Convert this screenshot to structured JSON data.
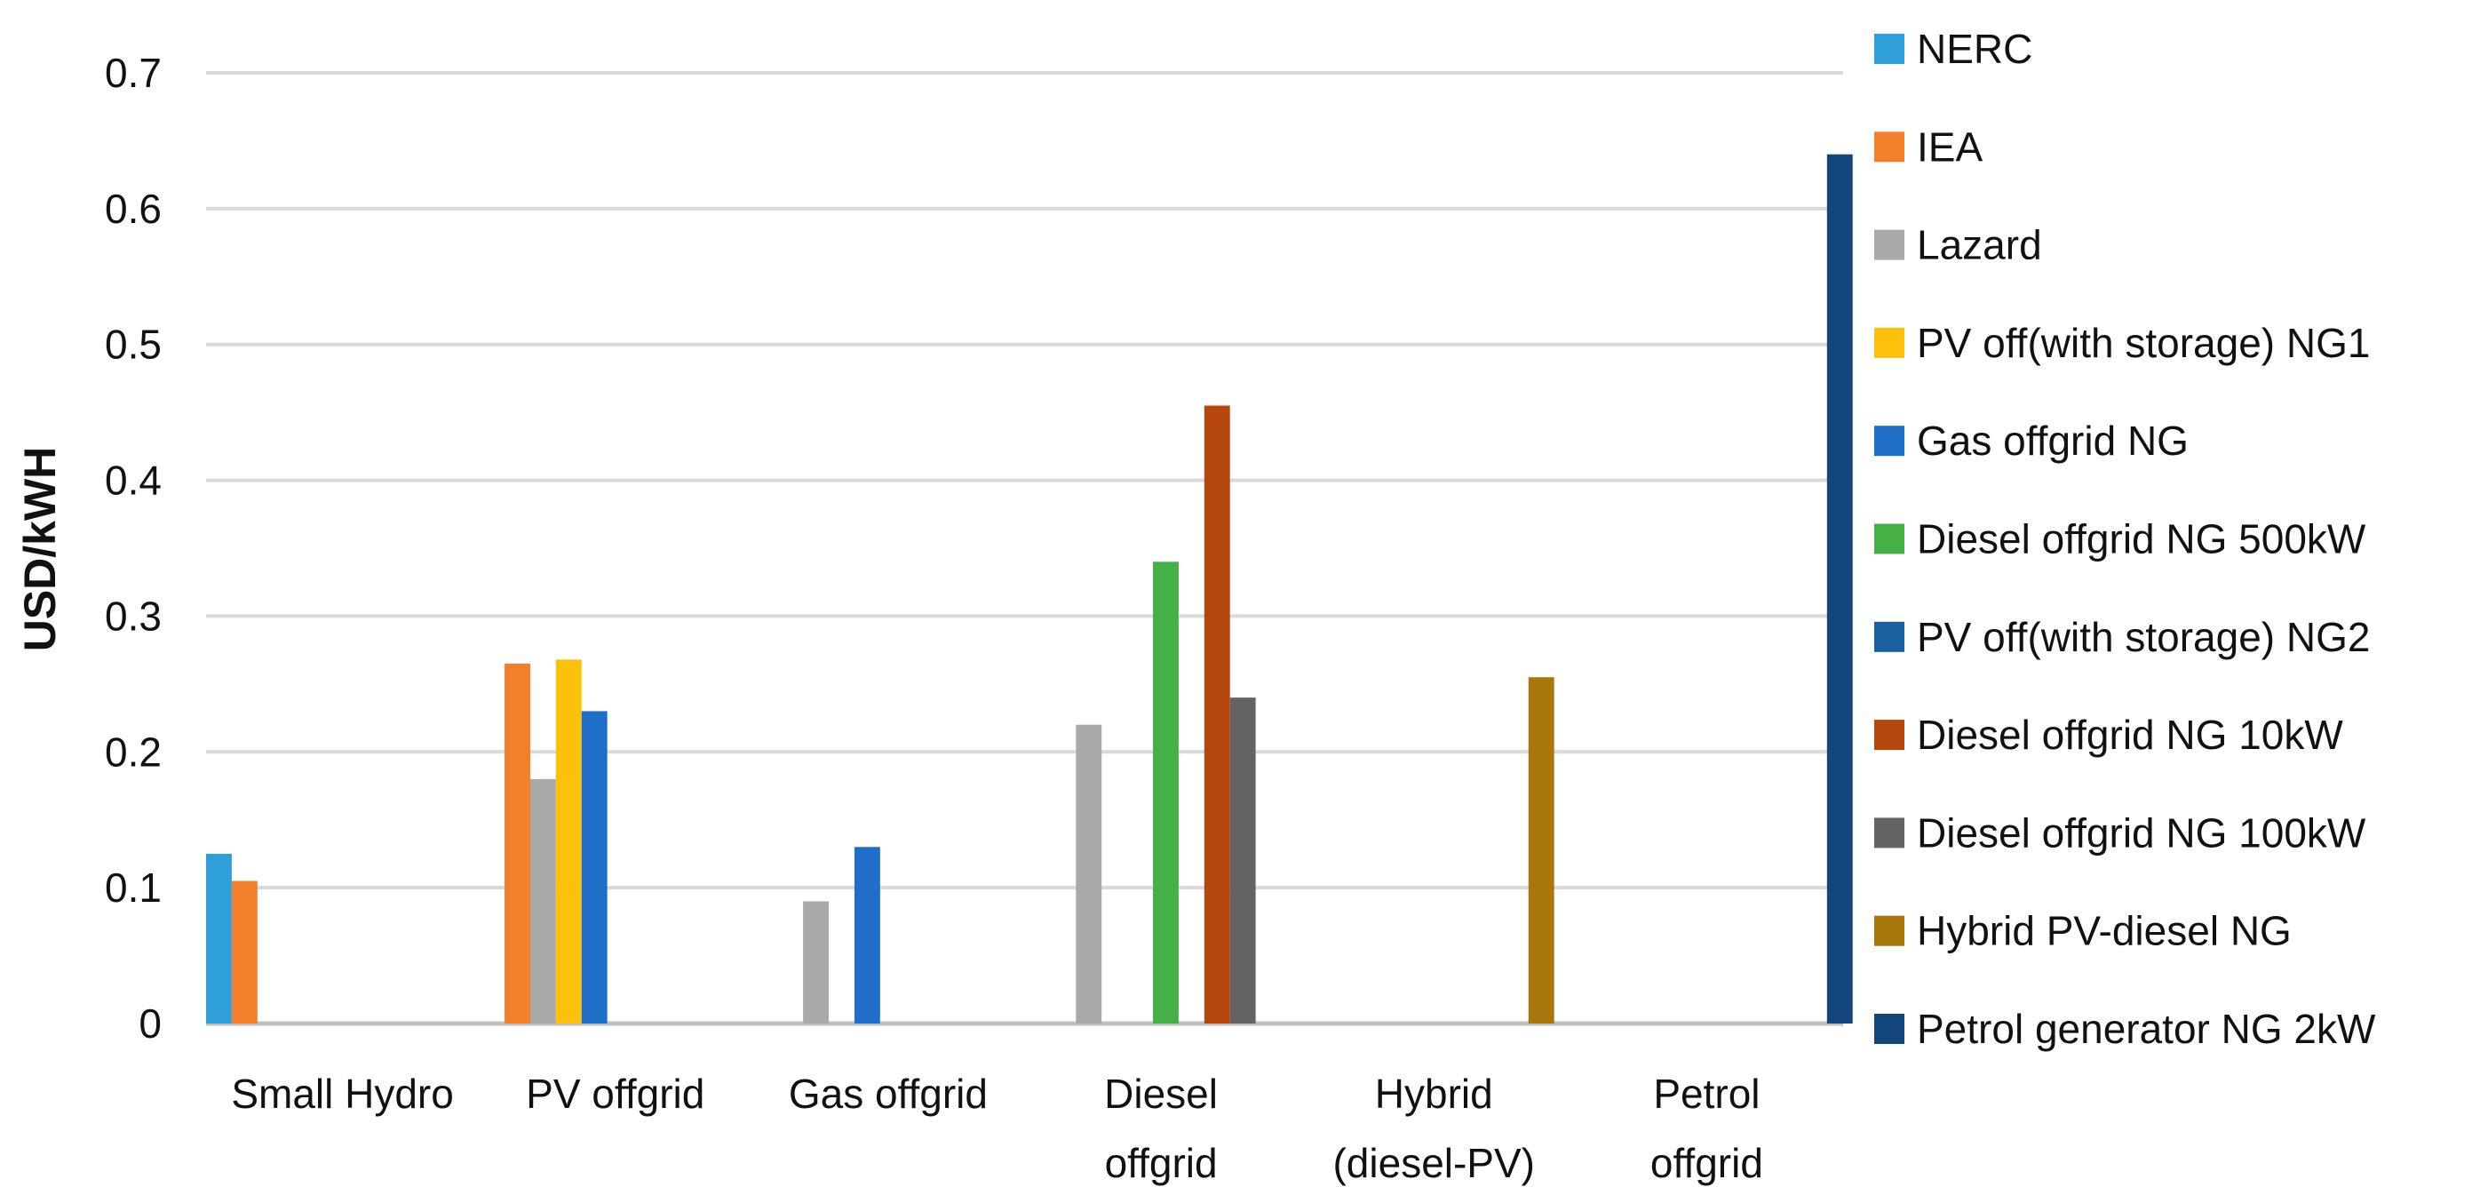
{
  "chart_data": {
    "type": "bar",
    "title": "",
    "xlabel": "",
    "ylabel": "USD/kWH",
    "ylim": [
      0,
      0.7
    ],
    "yticks": [
      "0",
      "0.1",
      "0.2",
      "0.3",
      "0.4",
      "0.5",
      "0.6",
      "0.7"
    ],
    "grid": true,
    "legend_position": "right",
    "categories": [
      [
        "Small Hydro"
      ],
      [
        "PV offgrid"
      ],
      [
        "Gas offgrid"
      ],
      [
        "Diesel",
        "offgrid"
      ],
      [
        "Hybrid",
        "(diesel-PV)"
      ],
      [
        "Petrol",
        "offgrid"
      ]
    ],
    "series": [
      {
        "name": "NERC",
        "color": "#2e9fd9",
        "values": [
          0.125,
          null,
          null,
          null,
          null,
          null
        ]
      },
      {
        "name": "IEA",
        "color": "#f47f2a",
        "values": [
          0.105,
          0.265,
          null,
          null,
          null,
          null
        ]
      },
      {
        "name": "Lazard",
        "color": "#a9a9a9",
        "values": [
          null,
          0.18,
          0.09,
          0.22,
          null,
          null
        ]
      },
      {
        "name": "PV off(with storage) NG1",
        "color": "#fdc10c",
        "values": [
          null,
          0.268,
          null,
          null,
          null,
          null
        ]
      },
      {
        "name": "Gas offgrid NG",
        "color": "#1f6fc9",
        "values": [
          null,
          0.23,
          0.13,
          null,
          null,
          null
        ]
      },
      {
        "name": "Diesel offgrid NG 500kW",
        "color": "#45b045",
        "values": [
          null,
          null,
          null,
          0.34,
          null,
          null
        ]
      },
      {
        "name": "PV off(with storage) NG2",
        "color": "#1a5f9e",
        "values": [
          null,
          null,
          null,
          null,
          null,
          null
        ]
      },
      {
        "name": "Diesel offgrid NG 10kW",
        "color": "#b5470d",
        "values": [
          null,
          null,
          null,
          0.455,
          null,
          null
        ]
      },
      {
        "name": "Diesel offgrid NG 100kW",
        "color": "#636363",
        "values": [
          null,
          null,
          null,
          0.24,
          null,
          null
        ]
      },
      {
        "name": "Hybrid PV-diesel NG",
        "color": "#a8780c",
        "values": [
          null,
          null,
          null,
          null,
          0.255,
          null
        ]
      },
      {
        "name": "Petrol generator NG 2kW",
        "color": "#12457a",
        "values": [
          null,
          null,
          null,
          null,
          null,
          0.64
        ]
      }
    ]
  }
}
